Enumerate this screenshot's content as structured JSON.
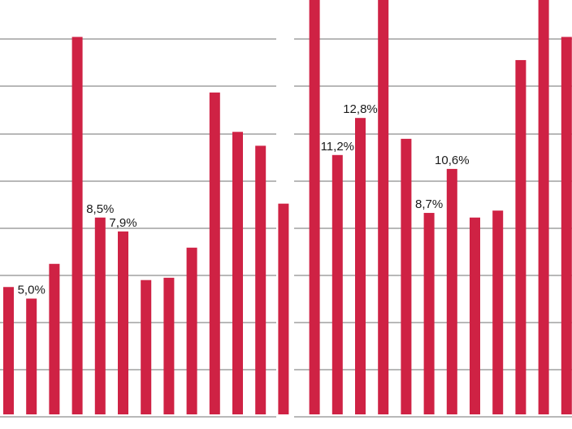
{
  "chart_data": {
    "type": "bar",
    "title": "",
    "xlabel": "",
    "ylabel": "",
    "ylim": [
      0,
      18.5
    ],
    "grid": true,
    "colors": {
      "bar": "#cf2244",
      "grid": "#444444",
      "divider": "#0a0a0a"
    },
    "series": [
      {
        "values": [
          5.5,
          5.0,
          6.5,
          16.3,
          8.5,
          7.9,
          5.8,
          5.9,
          7.2,
          13.9,
          12.2,
          11.6,
          9.1,
          18.5,
          11.2,
          12.8,
          18.5,
          11.9,
          8.7,
          10.6,
          8.5,
          8.8,
          15.3,
          18.5,
          16.3
        ],
        "labels": [
          "",
          "5,0%",
          "",
          "",
          "8,5%",
          "7,9%",
          "",
          "",
          "",
          "",
          "",
          "",
          "",
          "",
          "11,2%",
          "12,8%",
          "",
          "",
          "8,7%",
          "10,6%",
          "",
          "",
          "",
          "",
          ""
        ]
      }
    ]
  }
}
